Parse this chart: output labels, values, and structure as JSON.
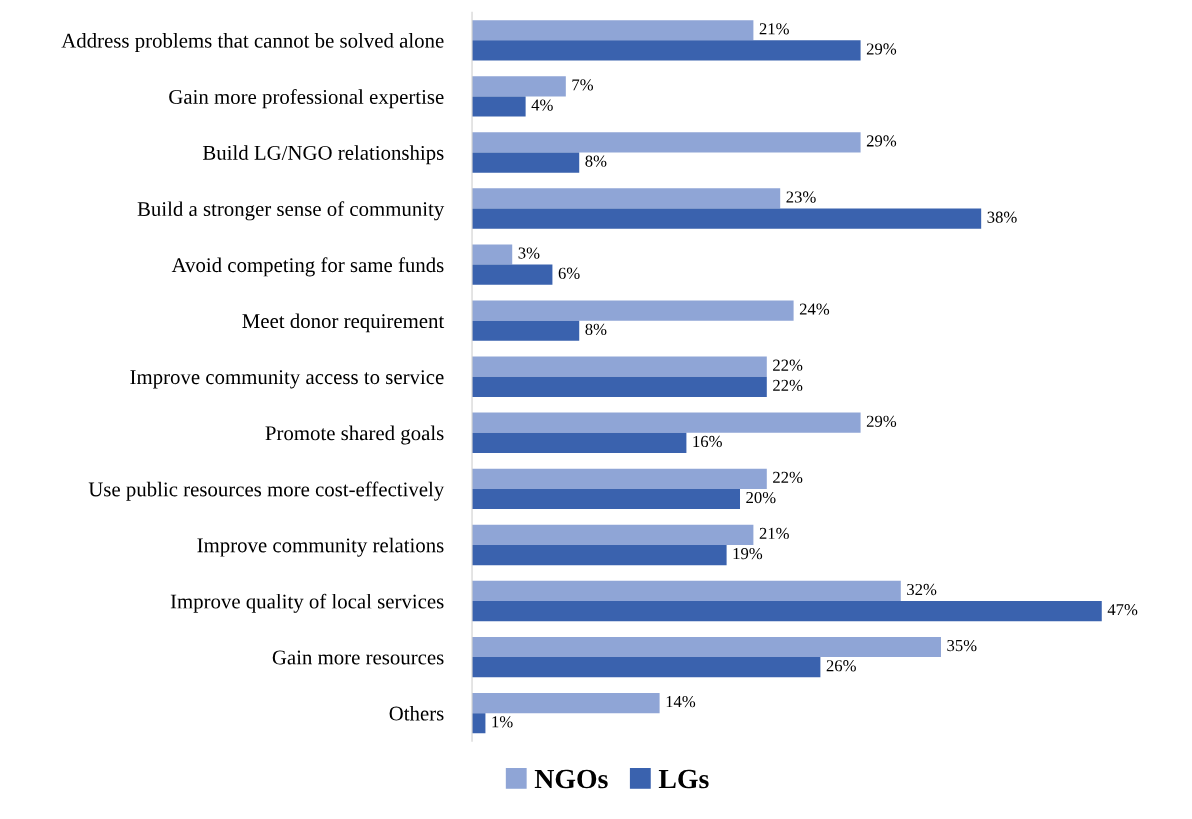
{
  "chart_data": {
    "type": "bar",
    "orientation": "horizontal",
    "categories": [
      "Address problems that cannot be solved alone",
      "Gain more professional expertise",
      "Build LG/NGO relationships",
      "Build a stronger sense of community",
      "Avoid competing for same funds",
      "Meet donor requirement",
      "Improve community access to service",
      "Promote shared goals",
      "Use public resources more cost-effectively",
      "Improve community relations",
      "Improve quality of local services",
      "Gain more resources",
      "Others"
    ],
    "series": [
      {
        "name": "NGOs",
        "color": "#8fa5d6",
        "values": [
          21,
          7,
          29,
          23,
          3,
          24,
          22,
          29,
          22,
          21,
          32,
          35,
          14
        ],
        "value_labels": [
          "21%",
          "7%",
          "29%",
          "23%",
          "3%",
          "24%",
          "22%",
          "29%",
          "22%",
          "21%",
          "32%",
          "35%",
          "14%"
        ]
      },
      {
        "name": "LGs",
        "color": "#3a62ae",
        "values": [
          29,
          4,
          8,
          38,
          6,
          8,
          22,
          16,
          20,
          19,
          47,
          26,
          1
        ],
        "value_labels": [
          "29%",
          "4%",
          "8%",
          "38%",
          "6%",
          "8%",
          "22%",
          "16%",
          "20%",
          "19%",
          "47%",
          "26%",
          "1%"
        ]
      }
    ],
    "legend": "bottom",
    "grid": false,
    "tick_labels": "y"
  }
}
